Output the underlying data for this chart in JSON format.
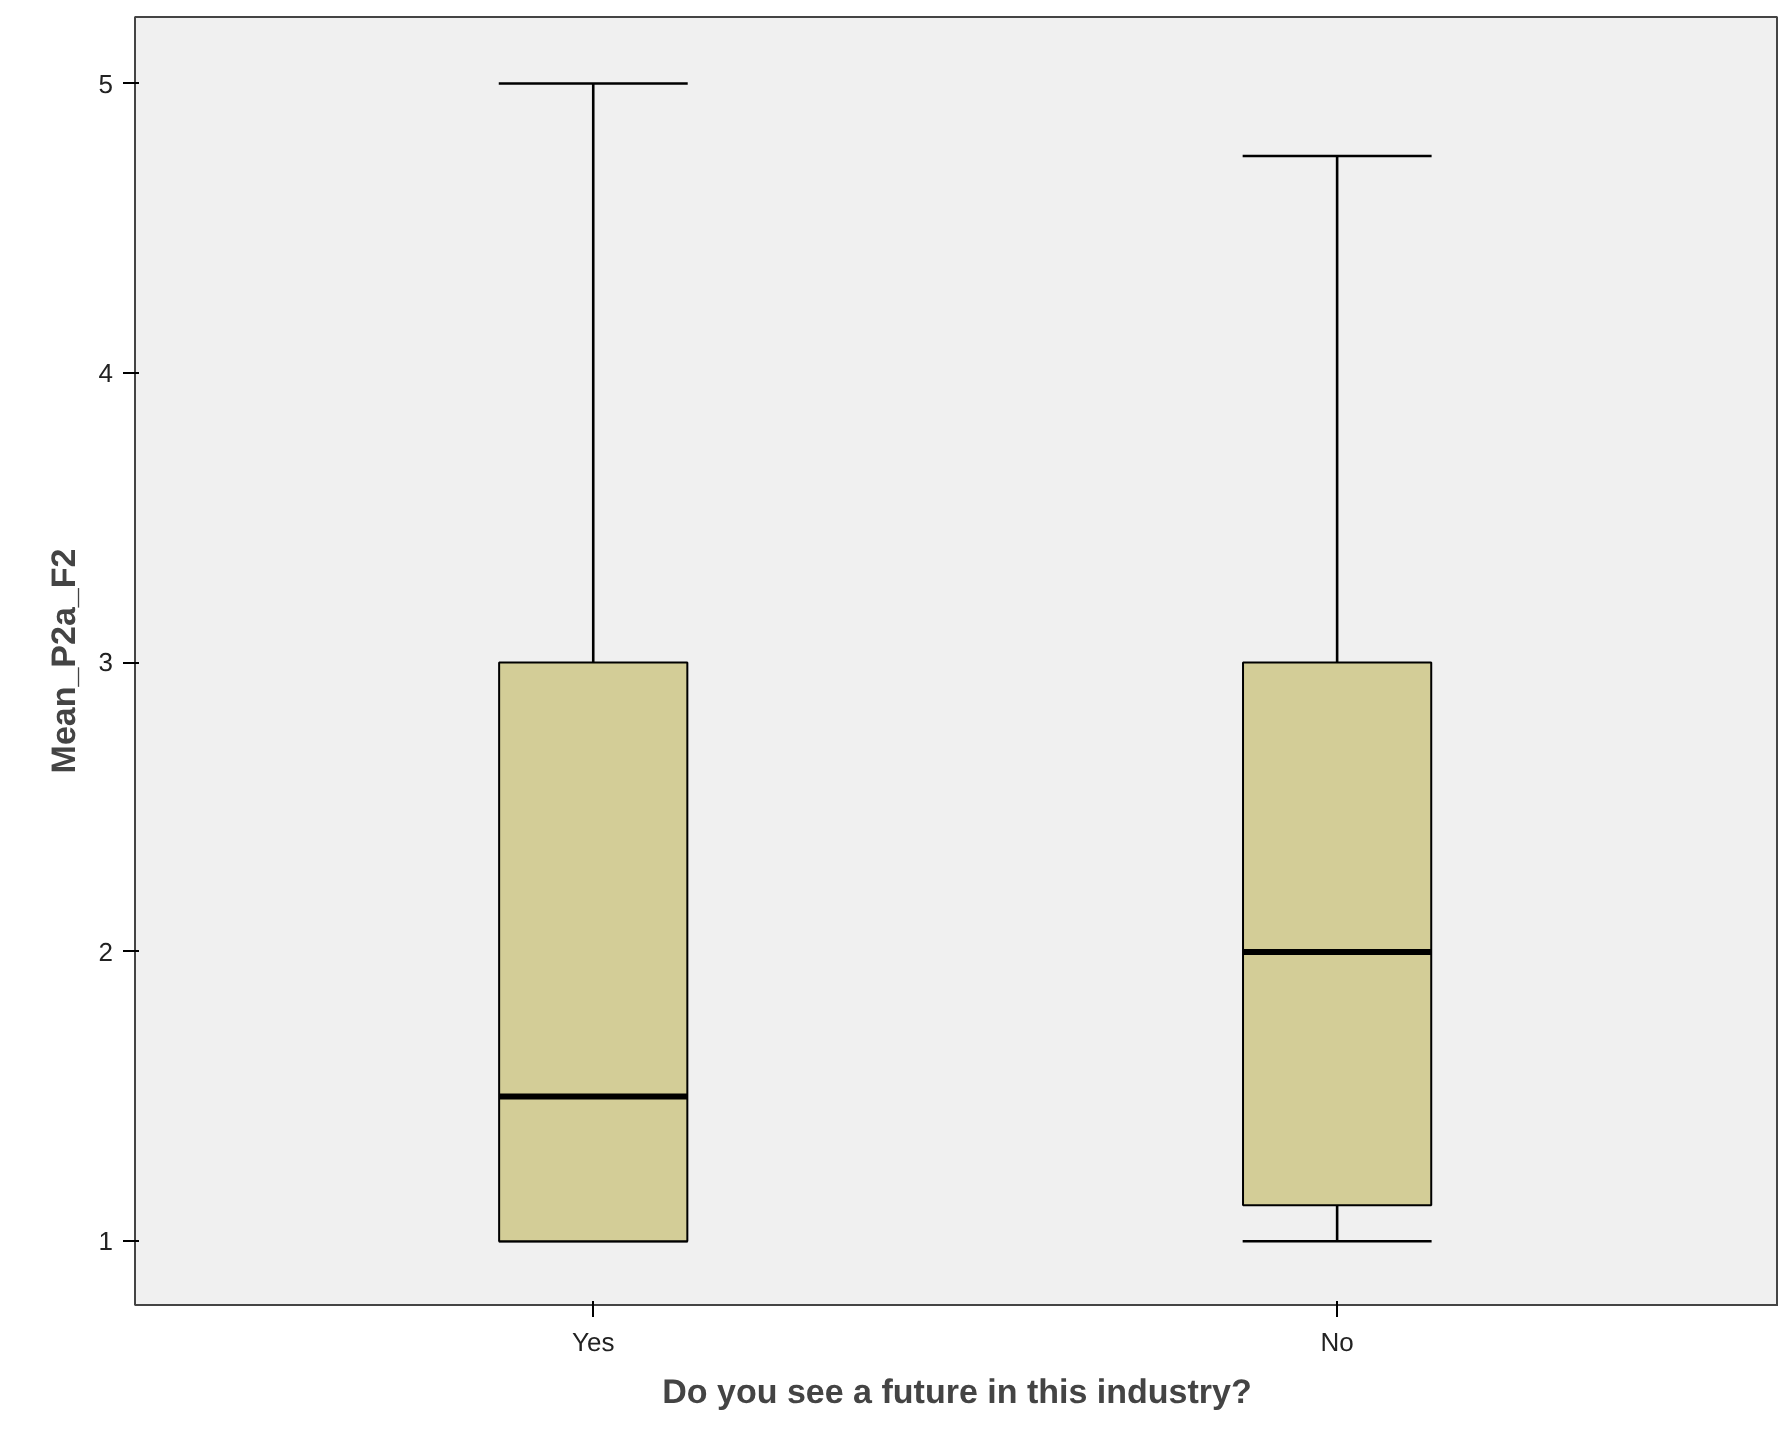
{
  "chart_data": {
    "type": "box",
    "xlabel": "Do you see a future in this industry?",
    "ylabel": "Mean_P2a_F2",
    "categories": [
      "Yes",
      "No"
    ],
    "color": "#d3cd97",
    "ylim": [
      0.78,
      5.23
    ],
    "yticks": [
      1,
      2,
      3,
      4,
      5
    ],
    "boxes": [
      {
        "low": 1,
        "q1": 1,
        "median": 1.5,
        "q3": 3,
        "high": 5
      },
      {
        "low": 1,
        "q1": 1.125,
        "median": 2,
        "q3": 3,
        "high": 4.75
      }
    ]
  }
}
